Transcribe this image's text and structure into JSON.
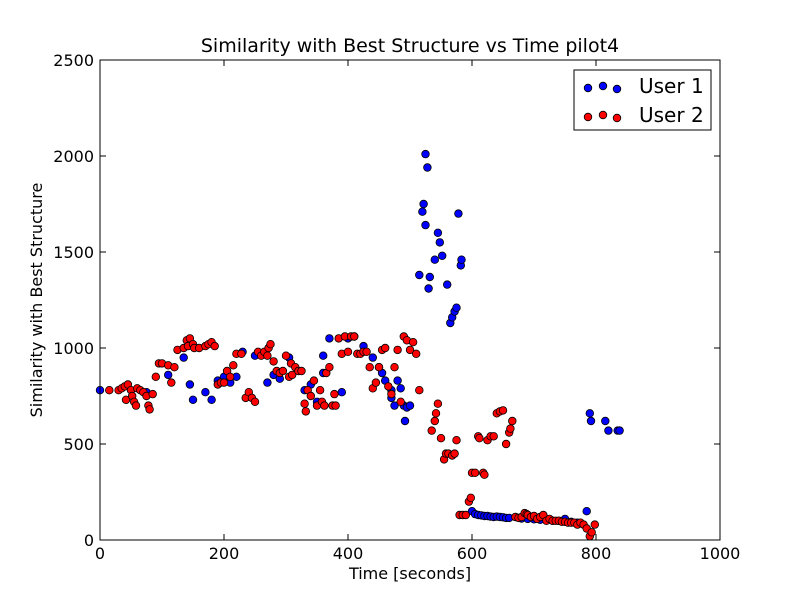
{
  "chart_data": {
    "type": "scatter",
    "title": "Similarity with Best Structure vs Time pilot4",
    "xlabel": "Time [seconds]",
    "ylabel": "Similarity with Best Structure",
    "xlim": [
      0,
      1000
    ],
    "ylim": [
      0,
      2500
    ],
    "x_ticks": [
      "0",
      "200",
      "400",
      "600",
      "800",
      "1000"
    ],
    "y_ticks": [
      "0",
      "500",
      "1000",
      "1500",
      "2000",
      "2500"
    ],
    "x_tick_values": [
      0,
      200,
      400,
      600,
      800,
      1000
    ],
    "y_tick_values": [
      0,
      500,
      1000,
      1500,
      2000,
      2500
    ],
    "grid": false,
    "legend_position": "top-right",
    "series": [
      {
        "name": "User 1",
        "color": "#0000ff",
        "points": [
          [
            0,
            780
          ],
          [
            75,
            770
          ],
          [
            110,
            860
          ],
          [
            135,
            950
          ],
          [
            145,
            810
          ],
          [
            150,
            730
          ],
          [
            170,
            770
          ],
          [
            180,
            730
          ],
          [
            190,
            830
          ],
          [
            200,
            850
          ],
          [
            210,
            820
          ],
          [
            220,
            850
          ],
          [
            230,
            980
          ],
          [
            250,
            960
          ],
          [
            270,
            820
          ],
          [
            280,
            860
          ],
          [
            290,
            840
          ],
          [
            305,
            950
          ],
          [
            330,
            780
          ],
          [
            340,
            810
          ],
          [
            350,
            720
          ],
          [
            360,
            870
          ],
          [
            360,
            960
          ],
          [
            370,
            1050
          ],
          [
            390,
            770
          ],
          [
            400,
            1050
          ],
          [
            410,
            1060
          ],
          [
            425,
            1010
          ],
          [
            440,
            950
          ],
          [
            450,
            900
          ],
          [
            455,
            870
          ],
          [
            460,
            830
          ],
          [
            470,
            780
          ],
          [
            470,
            740
          ],
          [
            475,
            700
          ],
          [
            480,
            830
          ],
          [
            485,
            790
          ],
          [
            490,
            700
          ],
          [
            492,
            620
          ],
          [
            495,
            690
          ],
          [
            500,
            700
          ],
          [
            515,
            1380
          ],
          [
            520,
            1710
          ],
          [
            522,
            1750
          ],
          [
            525,
            2010
          ],
          [
            528,
            1940
          ],
          [
            525,
            1640
          ],
          [
            530,
            1310
          ],
          [
            532,
            1370
          ],
          [
            540,
            1460
          ],
          [
            545,
            1600
          ],
          [
            548,
            1550
          ],
          [
            552,
            1480
          ],
          [
            560,
            1330
          ],
          [
            565,
            1130
          ],
          [
            568,
            1160
          ],
          [
            572,
            1190
          ],
          [
            575,
            1210
          ],
          [
            578,
            1700
          ],
          [
            582,
            1430
          ],
          [
            583,
            1460
          ],
          [
            600,
            150
          ],
          [
            605,
            135
          ],
          [
            610,
            130
          ],
          [
            615,
            128
          ],
          [
            620,
            125
          ],
          [
            625,
            125
          ],
          [
            630,
            122
          ],
          [
            635,
            120
          ],
          [
            640,
            122
          ],
          [
            645,
            120
          ],
          [
            650,
            118
          ],
          [
            655,
            115
          ],
          [
            660,
            115
          ],
          [
            680,
            112
          ],
          [
            690,
            110
          ],
          [
            700,
            108
          ],
          [
            710,
            105
          ],
          [
            720,
            105
          ],
          [
            730,
            100
          ],
          [
            740,
            100
          ],
          [
            750,
            110
          ],
          [
            760,
            95
          ],
          [
            770,
            90
          ],
          [
            785,
            150
          ],
          [
            790,
            660
          ],
          [
            792,
            620
          ],
          [
            815,
            620
          ],
          [
            820,
            570
          ],
          [
            835,
            570
          ],
          [
            838,
            570
          ]
        ]
      },
      {
        "name": "User 2",
        "color": "#ff0000",
        "points": [
          [
            15,
            780
          ],
          [
            30,
            780
          ],
          [
            35,
            790
          ],
          [
            40,
            800
          ],
          [
            42,
            730
          ],
          [
            45,
            810
          ],
          [
            50,
            780
          ],
          [
            52,
            750
          ],
          [
            55,
            720
          ],
          [
            58,
            700
          ],
          [
            60,
            790
          ],
          [
            65,
            780
          ],
          [
            70,
            770
          ],
          [
            75,
            750
          ],
          [
            78,
            700
          ],
          [
            80,
            680
          ],
          [
            85,
            760
          ],
          [
            90,
            850
          ],
          [
            95,
            920
          ],
          [
            100,
            920
          ],
          [
            110,
            910
          ],
          [
            115,
            820
          ],
          [
            120,
            900
          ],
          [
            125,
            990
          ],
          [
            135,
            1000
          ],
          [
            140,
            1040
          ],
          [
            142,
            1010
          ],
          [
            145,
            1050
          ],
          [
            150,
            1020
          ],
          [
            152,
            1000
          ],
          [
            160,
            1000
          ],
          [
            170,
            1010
          ],
          [
            175,
            1020
          ],
          [
            180,
            1030
          ],
          [
            185,
            1010
          ],
          [
            190,
            810
          ],
          [
            195,
            820
          ],
          [
            200,
            820
          ],
          [
            205,
            880
          ],
          [
            210,
            850
          ],
          [
            215,
            910
          ],
          [
            220,
            970
          ],
          [
            228,
            970
          ],
          [
            235,
            740
          ],
          [
            240,
            770
          ],
          [
            245,
            740
          ],
          [
            250,
            720
          ],
          [
            255,
            980
          ],
          [
            260,
            960
          ],
          [
            265,
            980
          ],
          [
            270,
            960
          ],
          [
            272,
            1000
          ],
          [
            275,
            1020
          ],
          [
            280,
            930
          ],
          [
            285,
            880
          ],
          [
            290,
            870
          ],
          [
            295,
            880
          ],
          [
            300,
            960
          ],
          [
            305,
            850
          ],
          [
            308,
            920
          ],
          [
            310,
            860
          ],
          [
            315,
            900
          ],
          [
            320,
            880
          ],
          [
            325,
            880
          ],
          [
            330,
            710
          ],
          [
            332,
            670
          ],
          [
            335,
            780
          ],
          [
            340,
            750
          ],
          [
            345,
            830
          ],
          [
            350,
            700
          ],
          [
            355,
            780
          ],
          [
            358,
            720
          ],
          [
            362,
            700
          ],
          [
            365,
            870
          ],
          [
            370,
            900
          ],
          [
            375,
            700
          ],
          [
            378,
            760
          ],
          [
            380,
            700
          ],
          [
            385,
            1050
          ],
          [
            390,
            970
          ],
          [
            395,
            1060
          ],
          [
            400,
            980
          ],
          [
            405,
            1060
          ],
          [
            410,
            1060
          ],
          [
            415,
            970
          ],
          [
            420,
            970
          ],
          [
            425,
            980
          ],
          [
            430,
            980
          ],
          [
            435,
            900
          ],
          [
            440,
            790
          ],
          [
            445,
            820
          ],
          [
            450,
            900
          ],
          [
            455,
            990
          ],
          [
            460,
            1000
          ],
          [
            465,
            800
          ],
          [
            470,
            760
          ],
          [
            475,
            900
          ],
          [
            480,
            990
          ],
          [
            485,
            720
          ],
          [
            490,
            1060
          ],
          [
            495,
            1040
          ],
          [
            500,
            990
          ],
          [
            505,
            1030
          ],
          [
            510,
            970
          ],
          [
            515,
            780
          ],
          [
            535,
            570
          ],
          [
            540,
            620
          ],
          [
            542,
            660
          ],
          [
            545,
            710
          ],
          [
            550,
            530
          ],
          [
            555,
            420
          ],
          [
            558,
            450
          ],
          [
            562,
            450
          ],
          [
            568,
            440
          ],
          [
            572,
            450
          ],
          [
            575,
            520
          ],
          [
            580,
            130
          ],
          [
            585,
            130
          ],
          [
            590,
            130
          ],
          [
            595,
            200
          ],
          [
            598,
            220
          ],
          [
            600,
            350
          ],
          [
            605,
            350
          ],
          [
            610,
            540
          ],
          [
            612,
            530
          ],
          [
            618,
            350
          ],
          [
            620,
            340
          ],
          [
            625,
            520
          ],
          [
            630,
            540
          ],
          [
            635,
            540
          ],
          [
            640,
            660
          ],
          [
            645,
            670
          ],
          [
            650,
            675
          ],
          [
            655,
            500
          ],
          [
            660,
            560
          ],
          [
            662,
            580
          ],
          [
            665,
            620
          ],
          [
            670,
            120
          ],
          [
            675,
            115
          ],
          [
            680,
            120
          ],
          [
            685,
            140
          ],
          [
            688,
            135
          ],
          [
            690,
            130
          ],
          [
            695,
            120
          ],
          [
            700,
            125
          ],
          [
            705,
            110
          ],
          [
            710,
            120
          ],
          [
            715,
            130
          ],
          [
            720,
            100
          ],
          [
            725,
            110
          ],
          [
            730,
            100
          ],
          [
            735,
            100
          ],
          [
            740,
            100
          ],
          [
            745,
            95
          ],
          [
            750,
            95
          ],
          [
            755,
            90
          ],
          [
            760,
            90
          ],
          [
            765,
            90
          ],
          [
            770,
            80
          ],
          [
            775,
            90
          ],
          [
            780,
            80
          ],
          [
            785,
            60
          ],
          [
            790,
            20
          ],
          [
            793,
            40
          ],
          [
            798,
            80
          ]
        ]
      }
    ]
  }
}
